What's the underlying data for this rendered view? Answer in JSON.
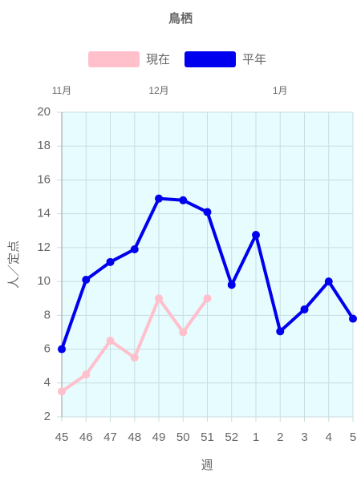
{
  "chart_data": {
    "type": "line",
    "title": "鳥栖",
    "categories": [
      "45",
      "46",
      "47",
      "48",
      "49",
      "50",
      "51",
      "52",
      "1",
      "2",
      "3",
      "4",
      "5"
    ],
    "top_labels": [
      {
        "at": "45",
        "label": "11月"
      },
      {
        "at": "49",
        "label": "12月"
      },
      {
        "at": "2",
        "label": "1月"
      }
    ],
    "series": [
      {
        "name": "現在",
        "color": "#ffc0cb",
        "values": [
          3.5,
          4.5,
          6.5,
          5.5,
          9.0,
          7.0,
          9.0,
          null,
          null,
          null,
          null,
          null,
          null
        ]
      },
      {
        "name": "平年",
        "color": "#0000ee",
        "values": [
          6.0,
          10.1,
          11.15,
          11.9,
          14.9,
          14.8,
          14.1,
          9.8,
          12.75,
          7.05,
          8.35,
          10.0,
          7.8
        ]
      }
    ],
    "ylabel": "人／定点",
    "xlabel": "週",
    "ylim": [
      2,
      20
    ],
    "yticks": [
      2,
      4,
      6,
      8,
      10,
      12,
      14,
      16,
      18,
      20
    ],
    "grid": true,
    "background": "#e6fcff"
  }
}
